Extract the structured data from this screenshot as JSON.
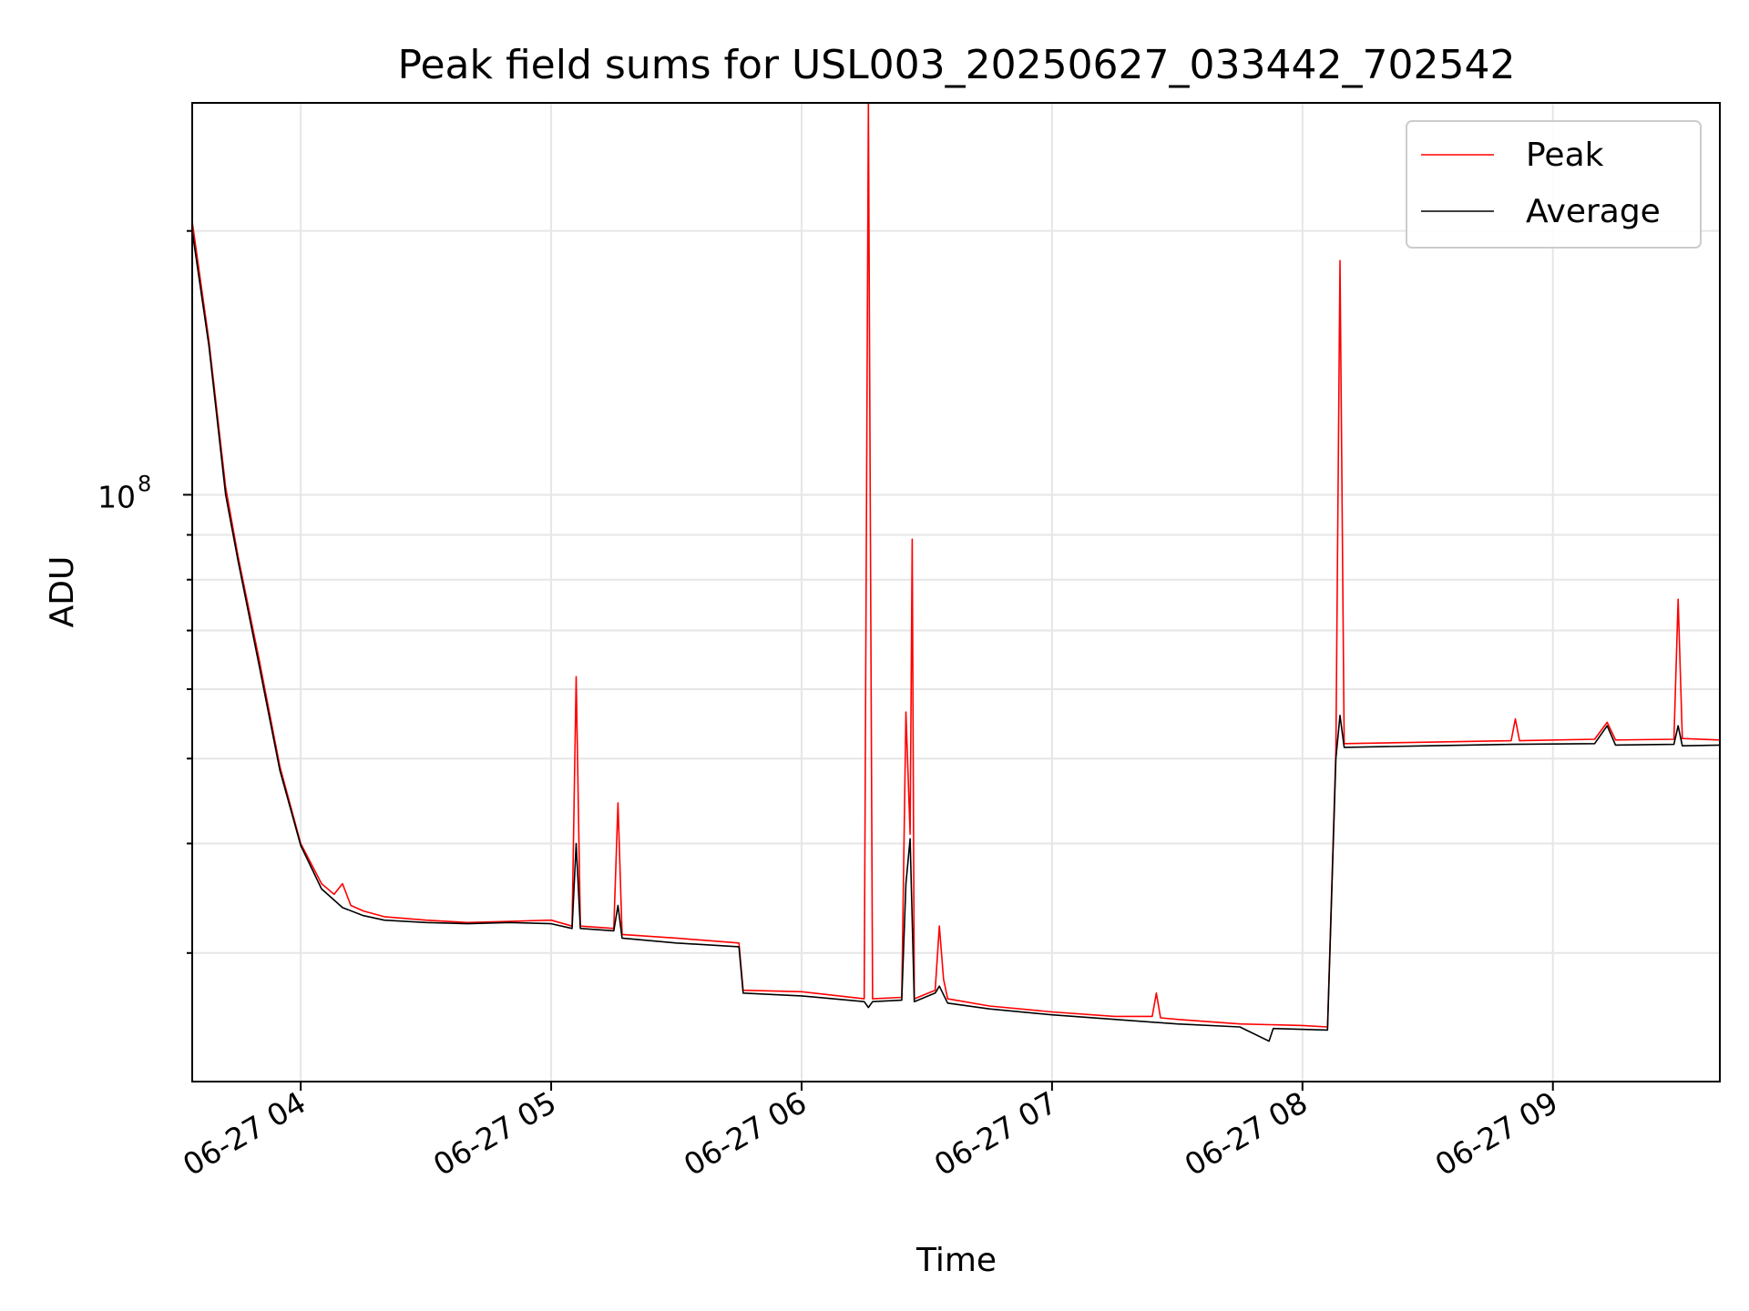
{
  "chart_data": {
    "type": "line",
    "title": "Peak field sums for USL003_20250627_033442_702542",
    "xlabel": "Time",
    "ylabel": "ADU",
    "y_scale": "log",
    "xlim": [
      "2025-06-27 03:34",
      "2025-06-27 09:40"
    ],
    "ylim": [
      21400000.0,
      280000000.0
    ],
    "grid": true,
    "legend_position": "top-right",
    "x_tick_labels": [
      "06-27 04",
      "06-27 05",
      "06-27 06",
      "06-27 07",
      "06-27 08",
      "06-27 09"
    ],
    "y_tick_labels": [
      {
        "base": "10",
        "exponent": "8",
        "value": 100000000.0
      }
    ],
    "series": [
      {
        "name": "Peak",
        "color": "#ff0000",
        "points": [
          [
            "2025-06-27 03:34",
            205000000.0
          ],
          [
            "2025-06-27 03:38",
            150000000.0
          ],
          [
            "2025-06-27 03:42",
            102000000.0
          ],
          [
            "2025-06-27 03:45",
            85000000.0
          ],
          [
            "2025-06-27 03:50",
            65000000.0
          ],
          [
            "2025-06-27 03:55",
            49000000.0
          ],
          [
            "2025-06-27 04:00",
            40000000.0
          ],
          [
            "2025-06-27 04:05",
            36000000.0
          ],
          [
            "2025-06-27 04:08",
            35000000.0
          ],
          [
            "2025-06-27 04:10",
            36000000.0
          ],
          [
            "2025-06-27 04:12",
            34000000.0
          ],
          [
            "2025-06-27 04:15",
            33500000.0
          ],
          [
            "2025-06-27 04:20",
            33000000.0
          ],
          [
            "2025-06-27 04:30",
            32700000.0
          ],
          [
            "2025-06-27 04:40",
            32500000.0
          ],
          [
            "2025-06-27 04:50",
            32600000.0
          ],
          [
            "2025-06-27 05:00",
            32700000.0
          ],
          [
            "2025-06-27 05:05",
            32200000.0
          ],
          [
            "2025-06-27 05:06",
            62000000.0
          ],
          [
            "2025-06-27 05:07",
            32200000.0
          ],
          [
            "2025-06-27 05:15",
            32000000.0
          ],
          [
            "2025-06-27 05:16",
            44500000.0
          ],
          [
            "2025-06-27 05:17",
            31500000.0
          ],
          [
            "2025-06-27 05:30",
            31200000.0
          ],
          [
            "2025-06-27 05:45",
            30800000.0
          ],
          [
            "2025-06-27 05:46",
            27200000.0
          ],
          [
            "2025-06-27 06:00",
            27100000.0
          ],
          [
            "2025-06-27 06:15",
            26600000.0
          ],
          [
            "2025-06-27 06:16",
            280000000.0
          ],
          [
            "2025-06-27 06:17",
            26600000.0
          ],
          [
            "2025-06-27 06:24",
            26700000.0
          ],
          [
            "2025-06-27 06:25",
            56500000.0
          ],
          [
            "2025-06-27 06:26",
            41000000.0
          ],
          [
            "2025-06-27 06:26.5",
            89000000.0
          ],
          [
            "2025-06-27 06:27",
            26600000.0
          ],
          [
            "2025-06-27 06:32",
            27200000.0
          ],
          [
            "2025-06-27 06:33",
            32200000.0
          ],
          [
            "2025-06-27 06:34",
            28000000.0
          ],
          [
            "2025-06-27 06:35",
            26600000.0
          ],
          [
            "2025-06-27 06:45",
            26100000.0
          ],
          [
            "2025-06-27 07:00",
            25700000.0
          ],
          [
            "2025-06-27 07:15",
            25400000.0
          ],
          [
            "2025-06-27 07:24",
            25400000.0
          ],
          [
            "2025-06-27 07:25",
            27000000.0
          ],
          [
            "2025-06-27 07:26",
            25300000.0
          ],
          [
            "2025-06-27 07:30",
            25200000.0
          ],
          [
            "2025-06-27 07:45",
            24900000.0
          ],
          [
            "2025-06-27 08:00",
            24800000.0
          ],
          [
            "2025-06-27 08:06",
            24700000.0
          ],
          [
            "2025-06-27 08:08",
            51000000.0
          ],
          [
            "2025-06-27 08:09",
            185000000.0
          ],
          [
            "2025-06-27 08:10",
            52000000.0
          ],
          [
            "2025-06-27 08:30",
            52200000.0
          ],
          [
            "2025-06-27 08:50",
            52400000.0
          ],
          [
            "2025-06-27 08:51",
            55500000.0
          ],
          [
            "2025-06-27 08:52",
            52400000.0
          ],
          [
            "2025-06-27 09:10",
            52600000.0
          ],
          [
            "2025-06-27 09:13",
            55000000.0
          ],
          [
            "2025-06-27 09:15",
            52500000.0
          ],
          [
            "2025-06-27 09:29",
            52600000.0
          ],
          [
            "2025-06-27 09:30",
            76000000.0
          ],
          [
            "2025-06-27 09:31",
            52700000.0
          ],
          [
            "2025-06-27 09:40",
            52500000.0
          ]
        ]
      },
      {
        "name": "Average",
        "color": "#000000",
        "points": [
          [
            "2025-06-27 03:34",
            200000000.0
          ],
          [
            "2025-06-27 03:38",
            148000000.0
          ],
          [
            "2025-06-27 03:42",
            100000000.0
          ],
          [
            "2025-06-27 03:45",
            84000000.0
          ],
          [
            "2025-06-27 03:50",
            64000000.0
          ],
          [
            "2025-06-27 03:55",
            48500000.0
          ],
          [
            "2025-06-27 04:00",
            39800000.0
          ],
          [
            "2025-06-27 04:05",
            35500000.0
          ],
          [
            "2025-06-27 04:10",
            33800000.0
          ],
          [
            "2025-06-27 04:15",
            33100000.0
          ],
          [
            "2025-06-27 04:20",
            32700000.0
          ],
          [
            "2025-06-27 04:30",
            32500000.0
          ],
          [
            "2025-06-27 04:40",
            32400000.0
          ],
          [
            "2025-06-27 04:50",
            32500000.0
          ],
          [
            "2025-06-27 05:00",
            32400000.0
          ],
          [
            "2025-06-27 05:05",
            32000000.0
          ],
          [
            "2025-06-27 05:06",
            40000000.0
          ],
          [
            "2025-06-27 05:07",
            32000000.0
          ],
          [
            "2025-06-27 05:15",
            31800000.0
          ],
          [
            "2025-06-27 05:16",
            34000000.0
          ],
          [
            "2025-06-27 05:17",
            31200000.0
          ],
          [
            "2025-06-27 05:30",
            30800000.0
          ],
          [
            "2025-06-27 05:45",
            30500000.0
          ],
          [
            "2025-06-27 05:46",
            27000000.0
          ],
          [
            "2025-06-27 06:00",
            26800000.0
          ],
          [
            "2025-06-27 06:15",
            26400000.0
          ],
          [
            "2025-06-27 06:16",
            26000000.0
          ],
          [
            "2025-06-27 06:17",
            26400000.0
          ],
          [
            "2025-06-27 06:24",
            26500000.0
          ],
          [
            "2025-06-27 06:25",
            36000000.0
          ],
          [
            "2025-06-27 06:26",
            40500000.0
          ],
          [
            "2025-06-27 06:27",
            26400000.0
          ],
          [
            "2025-06-27 06:32",
            27000000.0
          ],
          [
            "2025-06-27 06:33",
            27500000.0
          ],
          [
            "2025-06-27 06:35",
            26300000.0
          ],
          [
            "2025-06-27 06:45",
            25900000.0
          ],
          [
            "2025-06-27 07:00",
            25500000.0
          ],
          [
            "2025-06-27 07:15",
            25200000.0
          ],
          [
            "2025-06-27 07:30",
            24900000.0
          ],
          [
            "2025-06-27 07:45",
            24700000.0
          ],
          [
            "2025-06-27 07:52",
            23800000.0
          ],
          [
            "2025-06-27 07:53",
            24600000.0
          ],
          [
            "2025-06-27 08:06",
            24500000.0
          ],
          [
            "2025-06-27 08:08",
            50000000.0
          ],
          [
            "2025-06-27 08:09",
            56000000.0
          ],
          [
            "2025-06-27 08:10",
            51500000.0
          ],
          [
            "2025-06-27 08:30",
            51700000.0
          ],
          [
            "2025-06-27 08:50",
            51900000.0
          ],
          [
            "2025-06-27 09:10",
            52000000.0
          ],
          [
            "2025-06-27 09:13",
            54500000.0
          ],
          [
            "2025-06-27 09:15",
            51800000.0
          ],
          [
            "2025-06-27 09:29",
            51900000.0
          ],
          [
            "2025-06-27 09:30",
            54500000.0
          ],
          [
            "2025-06-27 09:31",
            51700000.0
          ],
          [
            "2025-06-27 09:40",
            51800000.0
          ]
        ]
      }
    ]
  }
}
